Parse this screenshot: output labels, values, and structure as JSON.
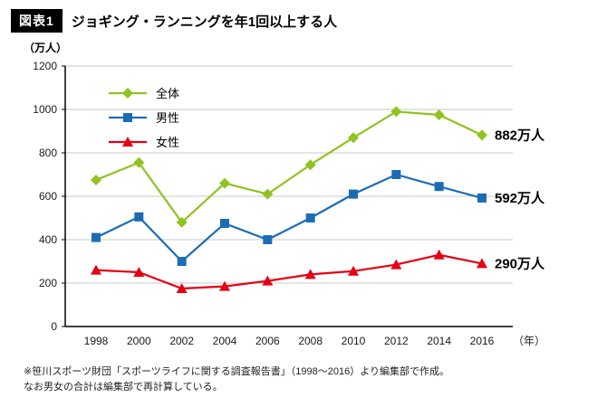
{
  "header": {
    "badge": "図表1",
    "title": "ジョギング・ランニングを年1回以上する人"
  },
  "chart_data": {
    "type": "line",
    "unit_label": "（万人）",
    "x_axis_suffix": "（年）",
    "categories": [
      "1998",
      "2000",
      "2002",
      "2004",
      "2006",
      "2008",
      "2010",
      "2012",
      "2014",
      "2016"
    ],
    "ylim": [
      0,
      1200
    ],
    "ytick_step": 200,
    "grid": true,
    "legend_position": "top-left-inside",
    "series": [
      {
        "name": "全体",
        "color": "#8fc31f",
        "marker": "diamond",
        "values": [
          675,
          755,
          480,
          660,
          610,
          745,
          870,
          990,
          975,
          882
        ],
        "end_label": "882万人"
      },
      {
        "name": "男性",
        "color": "#1b6cb5",
        "marker": "square",
        "values": [
          410,
          505,
          300,
          475,
          400,
          500,
          610,
          700,
          645,
          592
        ],
        "end_label": "592万人"
      },
      {
        "name": "女性",
        "color": "#e60012",
        "marker": "triangle",
        "values": [
          260,
          250,
          175,
          185,
          210,
          240,
          255,
          285,
          330,
          290
        ],
        "end_label": "290万人"
      }
    ]
  },
  "footnote": {
    "line1": "※笹川スポーツ財団「スポーツライフに関する調査報告書」（1998〜2016）より編集部で作成。",
    "line2": "なお男女の合計は編集部で再計算している。"
  }
}
